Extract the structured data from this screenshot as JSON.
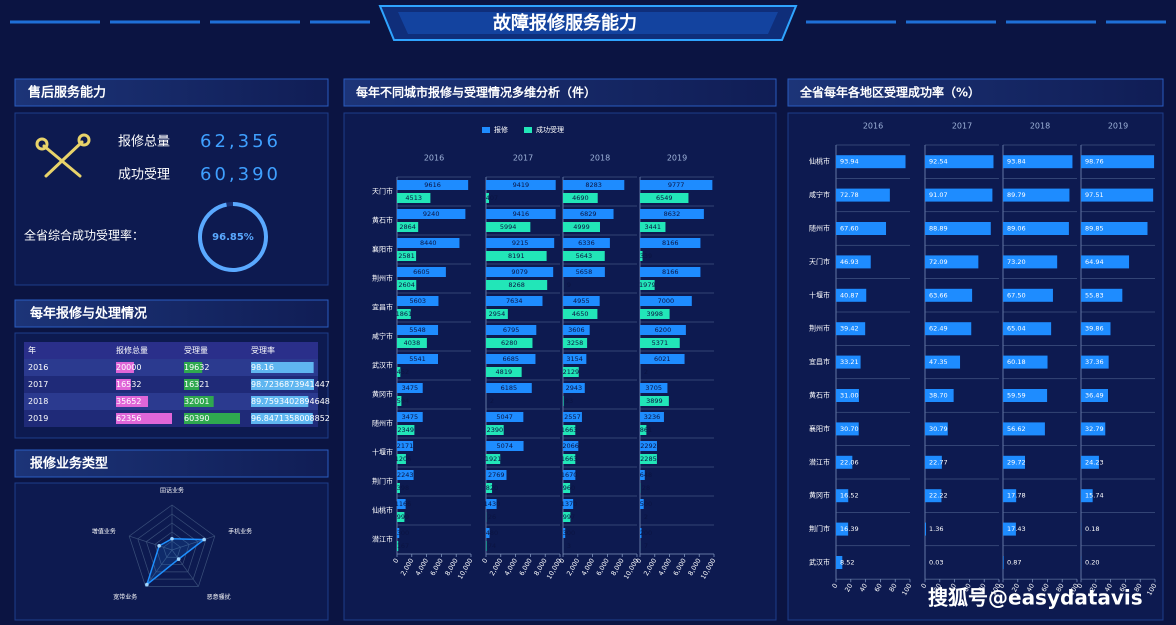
{
  "header": {
    "title": "故障报修服务能力"
  },
  "service": {
    "title": "售后服务能力",
    "items": [
      {
        "label": "报修总量",
        "value": "62,356"
      },
      {
        "label": "成功受理",
        "value": "60,390"
      }
    ]
  },
  "table": {
    "title": "每年报修与处理情况",
    "columns": [
      "年",
      "报修总量",
      "受理量",
      "受理率"
    ],
    "colors": [
      "#e066d8",
      "#2fa84f",
      "#5fb6f0"
    ],
    "rows": [
      [
        2016,
        20000,
        19632,
        98.16
      ],
      [
        2017,
        16532,
        16321,
        98.7236873941447
      ],
      [
        2018,
        35652,
        32001,
        89.7593402894648
      ],
      [
        2019,
        62356,
        60390,
        96.8471358008852
      ]
    ]
  },
  "chart_data": [
    {
      "type": "gauge",
      "title": "全省综合成功受理率：",
      "value": 96.85,
      "value_label": "96.85%",
      "ylim": [
        0,
        100
      ],
      "color": "#5aa9ff"
    },
    {
      "type": "radar",
      "title": "报修业务类型",
      "categories": [
        "固话业务",
        "手机业务",
        "恶意骚扰",
        "宽带业务",
        "增值业务"
      ],
      "values": [
        25,
        75,
        25,
        95,
        30
      ],
      "ylim": [
        0,
        100
      ],
      "color": "#1e90ff"
    },
    {
      "type": "facet_bar",
      "title": "每年不同城市报修与受理情况多维分析（件）",
      "categories": [
        "天门市",
        "黄石市",
        "襄阳市",
        "荆州市",
        "宜昌市",
        "咸宁市",
        "武汉市",
        "黄冈市",
        "随州市",
        "十堰市",
        "荆门市",
        "仙桃市",
        "潜江市"
      ],
      "facets": [
        "2016",
        "2017",
        "2018",
        "2019"
      ],
      "series": [
        {
          "name": "报修",
          "color": "#1e8cff",
          "values": [
            [
              9616,
              9240,
              8440,
              6605,
              5603,
              5548,
              5541,
              3475,
              3475,
              2171,
              2243,
              1166,
              300
            ],
            [
              9419,
              9416,
              9215,
              9079,
              7634,
              6795,
              6685,
              6185,
              5047,
              5074,
              2769,
              1430,
              480
            ],
            [
              8283,
              6829,
              6336,
              5658,
              4955,
              3606,
              3154,
              2943,
              2557,
              2066,
              1670,
              1370,
              300
            ],
            [
              9777,
              8632,
              8166,
              8166,
              7000,
              6200,
              6021,
              3705,
              3236,
              2292,
              648,
              500,
              200
            ]
          ]
        },
        {
          "name": "成功受理",
          "color": "#22e6b8",
          "values": [
            [
              4513,
              2864,
              2581,
              2604,
              1861,
              4038,
              452,
              594,
              2349,
              1206,
              398,
              999,
              167
            ],
            [
              407,
              5994,
              8191,
              8268,
              2954,
              6280,
              4819,
              2,
              2390,
              1921,
              820,
              26,
              74
            ],
            [
              4690,
              4999,
              5643,
              9,
              4650,
              3258,
              2129,
              83,
              1663,
              1663,
              960,
              997,
              3
            ],
            [
              6549,
              3441,
              339,
              1979,
              3998,
              5371,
              2,
              3899,
              861,
              2285,
              28,
              2,
              7
            ]
          ]
        }
      ],
      "xlim": [
        0,
        10000
      ],
      "xticks": [
        0,
        {
          "value": 2000,
          "label": "2,000"
        },
        {
          "value": 4000,
          "label": "4,000"
        },
        {
          "value": 6000,
          "label": "6,000"
        },
        {
          "value": 8000,
          "label": "8,000"
        },
        {
          "value": 10000,
          "label": "10,000"
        }
      ]
    },
    {
      "type": "facet_bar",
      "title": "全省每年各地区受理成功率（%）",
      "categories": [
        "仙桃市",
        "咸宁市",
        "随州市",
        "天门市",
        "十堰市",
        "荆州市",
        "宜昌市",
        "黄石市",
        "襄阳市",
        "潜江市",
        "黄冈市",
        "荆门市",
        "武汉市"
      ],
      "facets": [
        "2016",
        "2017",
        "2018",
        "2019"
      ],
      "series": [
        {
          "color": "#1e8cff",
          "values": [
            [
              93.94,
              72.78,
              67.6,
              46.93,
              40.87,
              39.42,
              33.21,
              31,
              30.7,
              22.06,
              16.52,
              16.39,
              8.52
            ],
            [
              92.54,
              91.07,
              88.89,
              72.09,
              63.66,
              62.49,
              47.35,
              38.7,
              30.79,
              22.77,
              22.22,
              1.36,
              0.03
            ],
            [
              93.84,
              89.79,
              89.06,
              73.2,
              67.5,
              65.04,
              60.18,
              59.59,
              56.62,
              29.72,
              17.78,
              17.43,
              0.87
            ],
            [
              98.76,
              97.51,
              89.85,
              64.94,
              55.83,
              39.86,
              37.36,
              36.49,
              32.79,
              24.23,
              15.74,
              0.18,
              0.2
            ]
          ],
          "value_labels": [
            [
              "93.94",
              "72.78",
              "67.60",
              "46.93",
              "40.87",
              "39.42",
              "33.21",
              "31.00",
              "30.70",
              "22.06",
              "16.52",
              "16.39",
              "8.52"
            ],
            [
              "92.54",
              "91.07",
              "88.89",
              "72.09",
              "63.66",
              "62.49",
              "47.35",
              "38.70",
              "30.79",
              "22.77",
              "22.22",
              "1.36",
              "0.03"
            ],
            [
              "93.84",
              "89.79",
              "89.06",
              "73.20",
              "67.50",
              "65.04",
              "60.18",
              "59.59",
              "56.62",
              "29.72",
              "17.78",
              "17.43",
              "0.87"
            ],
            [
              "98.76",
              "97.51",
              "89.85",
              "64.94",
              "55.83",
              "39.86",
              "37.36",
              "36.49",
              "32.79",
              "24.23",
              "15.74",
              "0.18",
              "0.20"
            ]
          ]
        }
      ],
      "xlim": [
        0,
        100
      ],
      "xticks": [
        0,
        20,
        40,
        60,
        80,
        100
      ]
    }
  ],
  "watermark": "搜狐号@easydatavis"
}
